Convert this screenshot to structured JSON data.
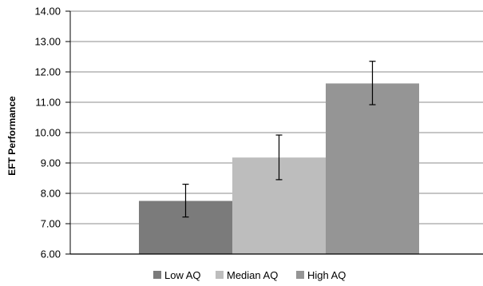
{
  "chart_data": {
    "type": "bar",
    "title": "",
    "xlabel": "",
    "ylabel": "EFT Performance",
    "ylim": [
      6.0,
      14.0
    ],
    "yticks": [
      "6.00",
      "7.00",
      "8.00",
      "9.00",
      "10.00",
      "11.00",
      "12.00",
      "13.00",
      "14.00"
    ],
    "grid": true,
    "legend_position": "bottom",
    "error_bars": true,
    "series": [
      {
        "name": "Low AQ",
        "value": 7.75,
        "error_low": 7.22,
        "error_high": 8.3,
        "color": "#7b7b7b"
      },
      {
        "name": "Median AQ",
        "value": 9.18,
        "error_low": 8.45,
        "error_high": 9.92,
        "color": "#bdbdbd"
      },
      {
        "name": "High AQ",
        "value": 11.62,
        "error_low": 10.92,
        "error_high": 12.35,
        "color": "#959595"
      }
    ]
  }
}
